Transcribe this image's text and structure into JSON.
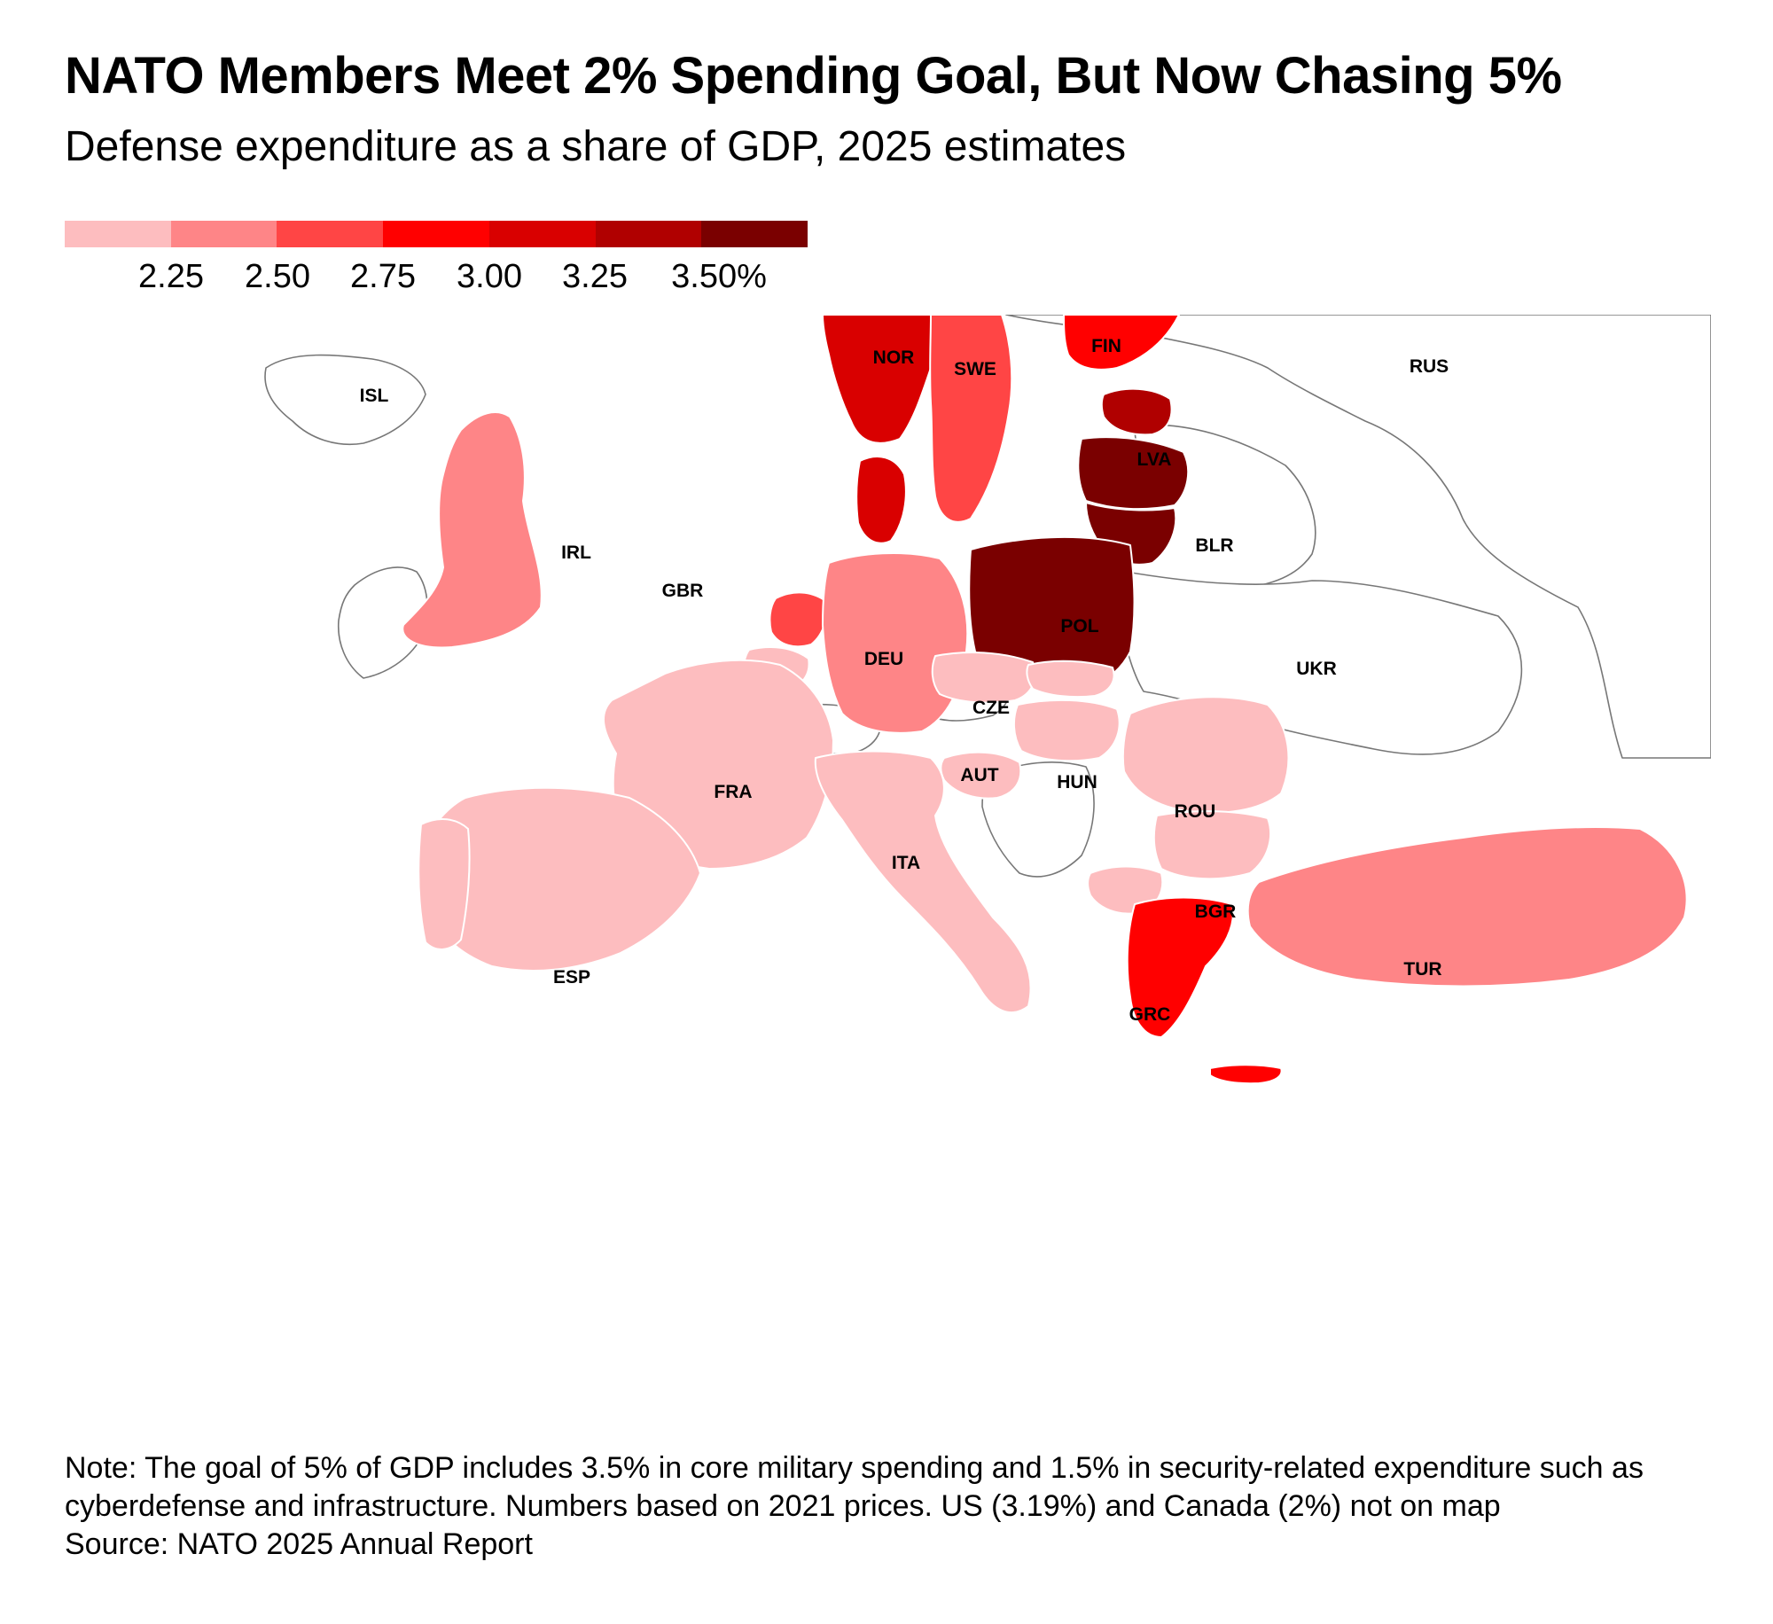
{
  "title": "NATO Members Meet 2% Spending Goal, But Now Chasing 5%",
  "subtitle": "Defense expenditure as a share of GDP, 2025 estimates",
  "legend": {
    "ticks": [
      "2.25",
      "2.50",
      "2.75",
      "3.00",
      "3.25",
      "3.50%"
    ],
    "colors": [
      "#fdbdbf",
      "#fe8587",
      "#ff4545",
      "#ff0000",
      "#d90000",
      "#b00000",
      "#7a0000"
    ]
  },
  "map": {
    "countries": [
      {
        "code": "ISL",
        "shade": "none"
      },
      {
        "code": "NOR",
        "shade": "#d90000"
      },
      {
        "code": "SWE",
        "shade": "#ff4545"
      },
      {
        "code": "FIN",
        "shade": "#ff0000"
      },
      {
        "code": "RUS",
        "shade": "none"
      },
      {
        "code": "LVA",
        "shade": "#7a0000"
      },
      {
        "code": "IRL",
        "shade": "none"
      },
      {
        "code": "GBR",
        "shade": "#fe8587"
      },
      {
        "code": "BLR",
        "shade": "none"
      },
      {
        "code": "POL",
        "shade": "#7a0000"
      },
      {
        "code": "DEU",
        "shade": "#fe8587"
      },
      {
        "code": "UKR",
        "shade": "none"
      },
      {
        "code": "CZE",
        "shade": "#fdbdbf"
      },
      {
        "code": "AUT",
        "shade": "none"
      },
      {
        "code": "HUN",
        "shade": "#fdbdbf"
      },
      {
        "code": "FRA",
        "shade": "#fdbdbf"
      },
      {
        "code": "ROU",
        "shade": "#fdbdbf"
      },
      {
        "code": "ITA",
        "shade": "#fdbdbf"
      },
      {
        "code": "BGR",
        "shade": "#fdbdbf"
      },
      {
        "code": "ESP",
        "shade": "#fdbdbf"
      },
      {
        "code": "TUR",
        "shade": "#fe8587"
      },
      {
        "code": "GRC",
        "shade": "#ff0000"
      }
    ]
  },
  "footer": {
    "note": "Note: The goal of 5% of GDP includes 3.5% in core military spending and 1.5% in security-related expenditure such as cyberdefense and infrastructure. Numbers based on 2021 prices. US (3.19%) and Canada (2%) not on map",
    "source": "Source: NATO 2025 Annual Report"
  }
}
